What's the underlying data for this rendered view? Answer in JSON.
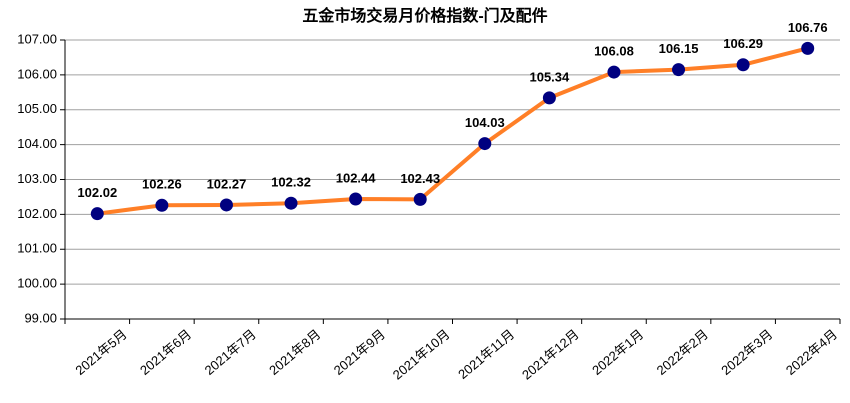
{
  "chart_data": {
    "type": "line",
    "title": "五金市场交易月价格指数-门及配件",
    "categories": [
      "2021年5月",
      "2021年6月",
      "2021年7月",
      "2021年8月",
      "2021年9月",
      "2021年10月",
      "2021年11月",
      "2021年12月",
      "2022年1月",
      "2022年2月",
      "2022年3月",
      "2022年4月"
    ],
    "values": [
      102.02,
      102.26,
      102.27,
      102.32,
      102.44,
      102.43,
      104.03,
      105.34,
      106.08,
      106.15,
      106.29,
      106.76
    ],
    "color": "#ff7f27",
    "marker_color": "#000080",
    "ylim": [
      99,
      107
    ],
    "yticks": [
      {
        "value": 99,
        "label": "99.00"
      },
      {
        "value": 100,
        "label": "100.00"
      },
      {
        "value": 101,
        "label": "101.00"
      },
      {
        "value": 102,
        "label": "102.00"
      },
      {
        "value": 103,
        "label": "103.00"
      },
      {
        "value": 104,
        "label": "104.00"
      },
      {
        "value": 105,
        "label": "105.00"
      },
      {
        "value": 106,
        "label": "106.00"
      },
      {
        "value": 107,
        "label": "107.00"
      }
    ],
    "grid": true
  }
}
